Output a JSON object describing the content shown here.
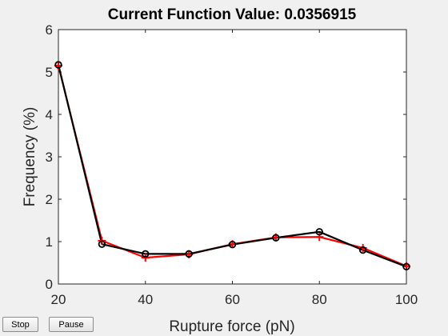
{
  "controls": {
    "stop_label": "Stop",
    "pause_label": "Pause"
  },
  "colors": {
    "background": "#f0f0f0",
    "axes_background": "#ffffff",
    "series_fit": "#ff0000",
    "series_data": "#000000"
  },
  "chart_data": {
    "type": "line",
    "title": "Current Function Value: 0.0356915",
    "xlabel": "Rupture force (pN)",
    "ylabel": "Frequency (%)",
    "xlim": [
      20,
      100
    ],
    "ylim": [
      0,
      6
    ],
    "xticks": [
      "20",
      "40",
      "60",
      "80",
      "100"
    ],
    "yticks": [
      "0",
      "1",
      "2",
      "3",
      "4",
      "5",
      "6"
    ],
    "grid": false,
    "x": [
      20,
      30,
      40,
      50,
      60,
      70,
      80,
      90,
      100
    ],
    "series": [
      {
        "marker": "plus",
        "color": "#ff0000",
        "values": [
          5.15,
          1.02,
          0.62,
          0.7,
          0.94,
          1.1,
          1.11,
          0.85,
          0.42
        ]
      },
      {
        "marker": "circle",
        "color": "#000000",
        "values": [
          5.17,
          0.94,
          0.71,
          0.71,
          0.93,
          1.09,
          1.23,
          0.8,
          0.41
        ]
      }
    ]
  }
}
